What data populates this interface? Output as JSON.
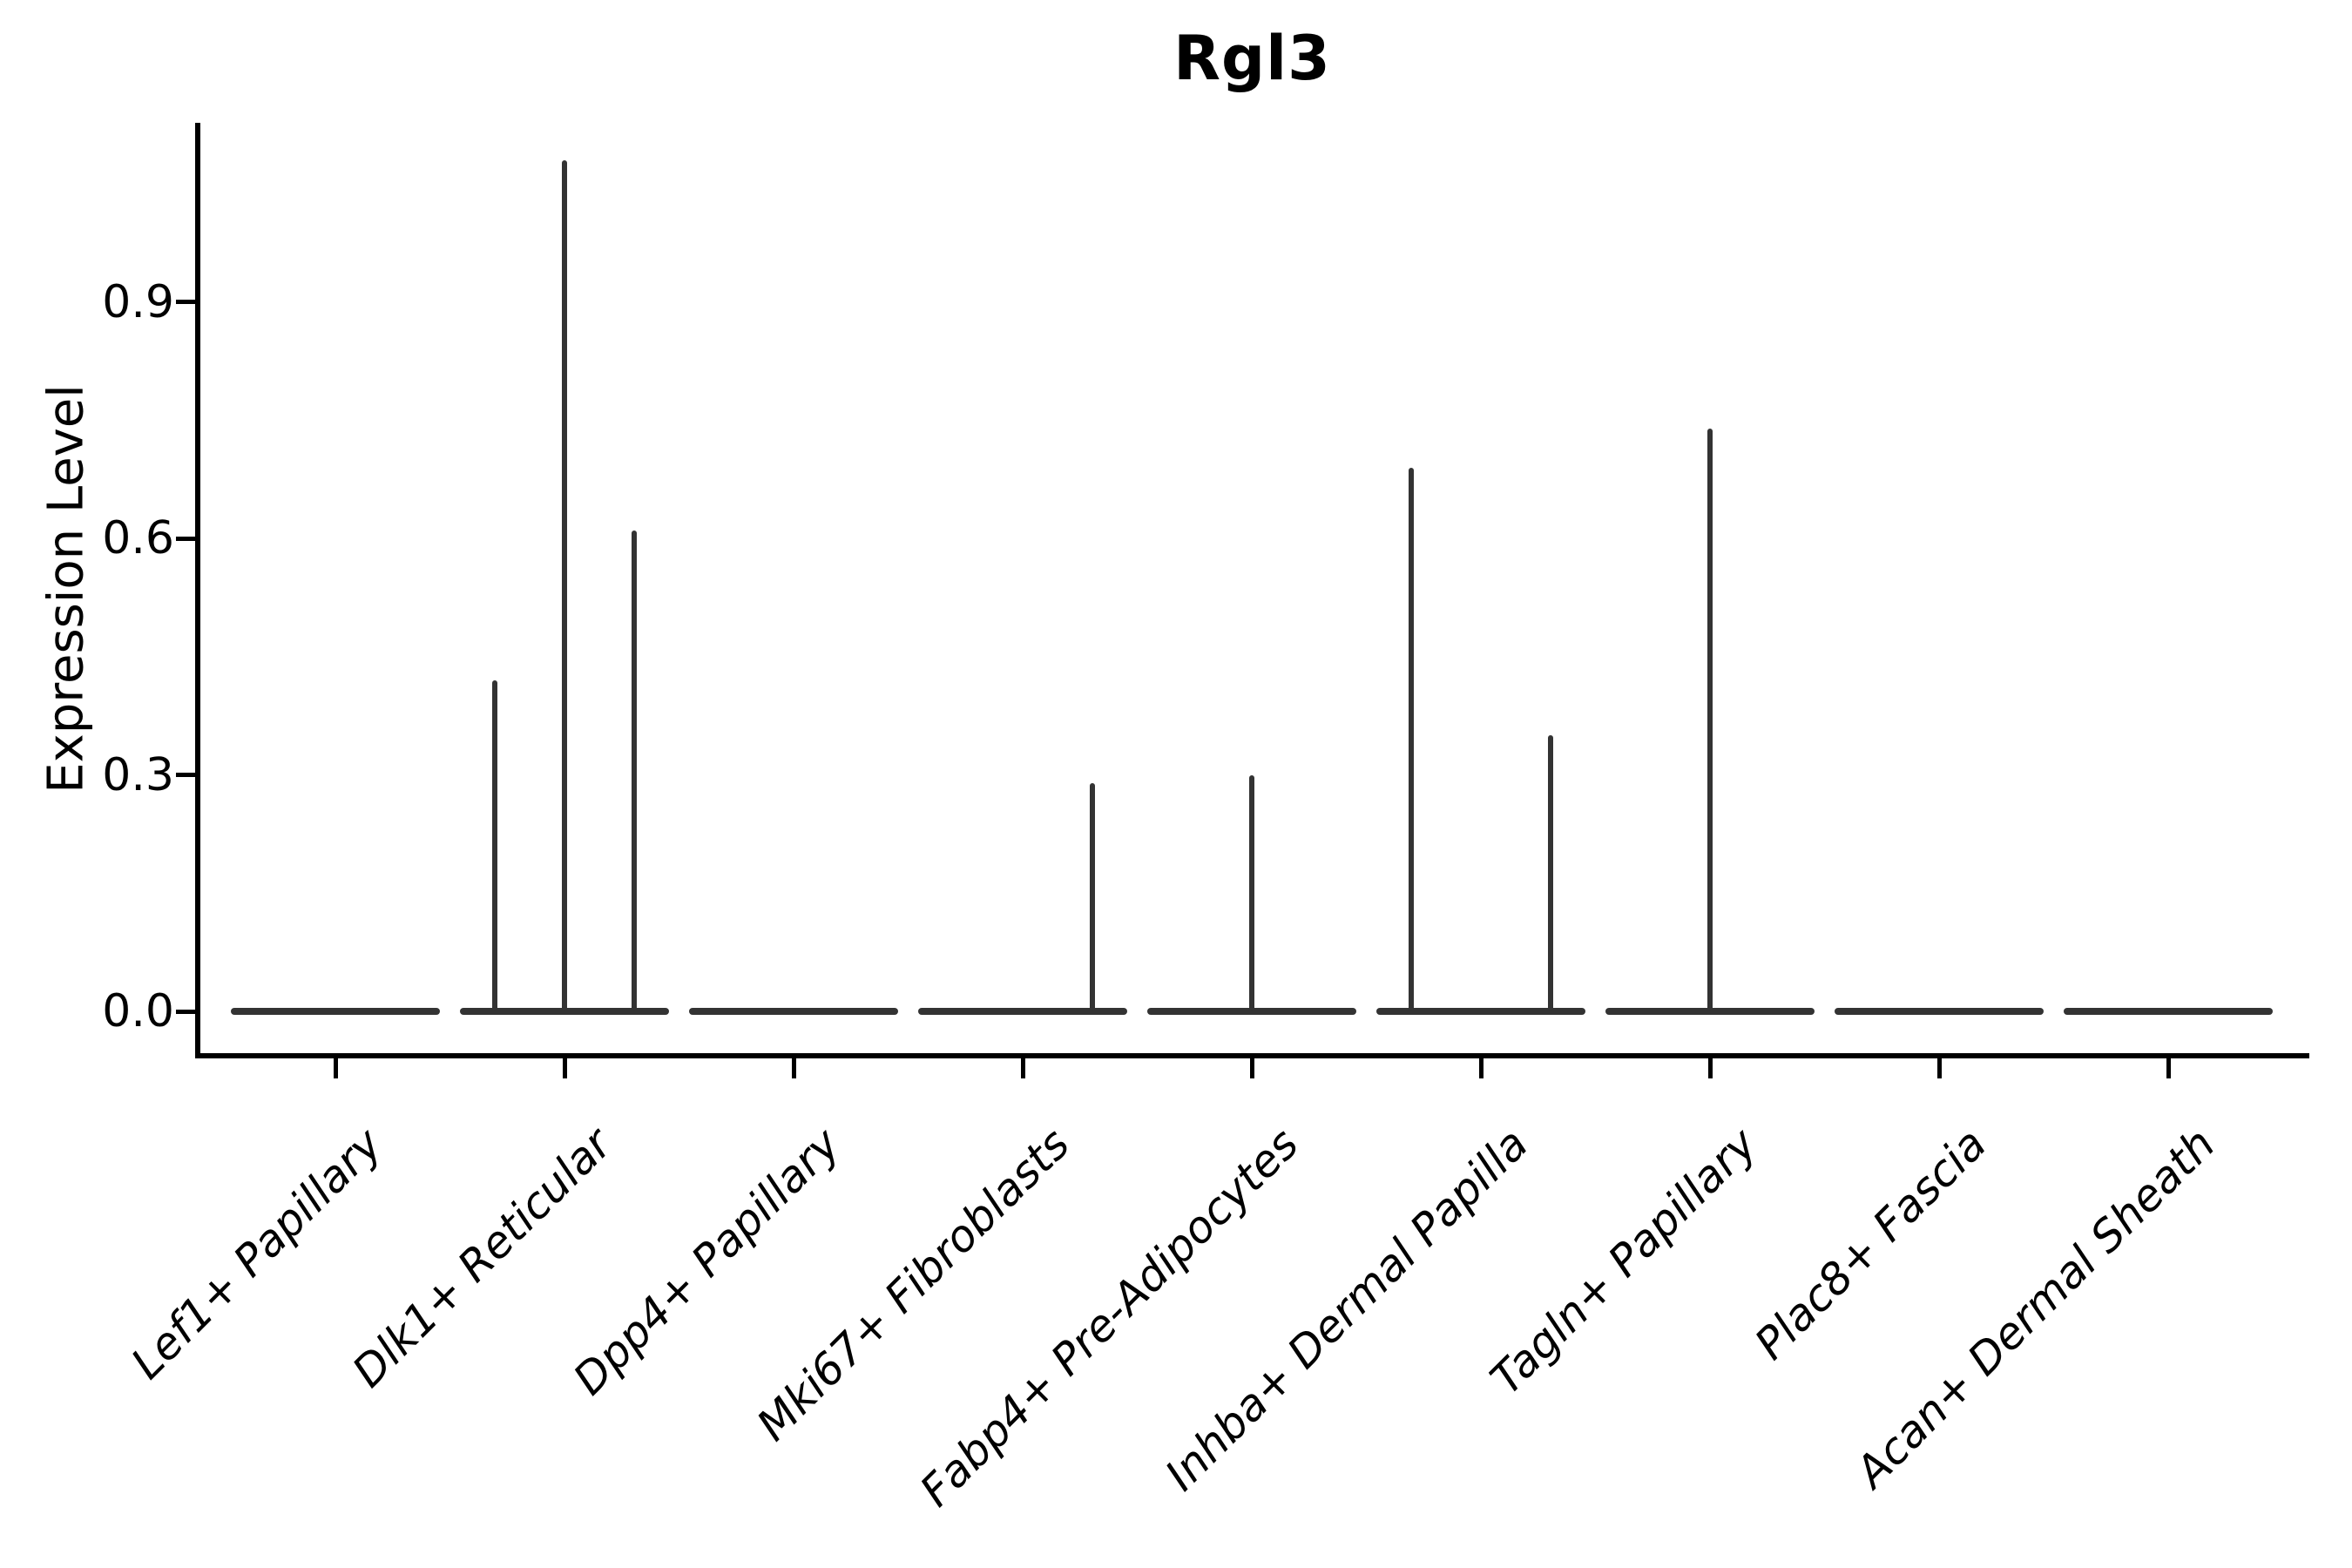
{
  "title": "Rgl3",
  "y_axis": {
    "label": "Expression Level",
    "tick_labels": [
      "0.0",
      "0.3",
      "0.6",
      "0.9"
    ]
  },
  "chart_data": {
    "type": "violin",
    "title": "Rgl3",
    "xlabel": "",
    "ylabel": "Expression Level",
    "ylim": [
      0,
      1.13
    ],
    "yticks": [
      0.0,
      0.3,
      0.6,
      0.9
    ],
    "grid": false,
    "legend": "none",
    "categories": [
      "Lef1+ Papillary",
      "Dlk1+ Reticular",
      "Dpp4+ Papillary",
      "Mki67+ Fibroblasts",
      "Fabp4+ Pre-Adipocytes",
      "Inhba+ Dermal Papilla",
      "Tagln+ Papillary",
      "Plac8+ Fascia",
      "Acan+ Dermal Sheath"
    ],
    "description": "Violin plot of Rgl3 expression per fibroblast cluster; all distributions are concentrated at 0 (flat baselines) with thin spikes marking rare expressing cells.",
    "violins": [
      {
        "category": "Lef1+ Papillary",
        "baseline_value": 0,
        "spikes": []
      },
      {
        "category": "Dlk1+ Reticular",
        "baseline_value": 0,
        "spikes": [
          {
            "offset": -80,
            "value": 0.42
          },
          {
            "offset": 0,
            "value": 1.08
          },
          {
            "offset": 80,
            "value": 0.61
          }
        ]
      },
      {
        "category": "Dpp4+ Papillary",
        "baseline_value": 0,
        "spikes": []
      },
      {
        "category": "Mki67+ Fibroblasts",
        "baseline_value": 0,
        "spikes": [
          {
            "offset": 80,
            "value": 0.29
          }
        ]
      },
      {
        "category": "Fabp4+ Pre-Adipocytes",
        "baseline_value": 0,
        "spikes": [
          {
            "offset": 0,
            "value": 0.3
          }
        ]
      },
      {
        "category": "Inhba+ Dermal Papilla",
        "baseline_value": 0,
        "spikes": [
          {
            "offset": -80,
            "value": 0.69
          },
          {
            "offset": 80,
            "value": 0.35
          }
        ]
      },
      {
        "category": "Tagln+ Papillary",
        "baseline_value": 0,
        "spikes": [
          {
            "offset": 0,
            "value": 0.74
          }
        ]
      },
      {
        "category": "Plac8+ Fascia",
        "baseline_value": 0,
        "spikes": []
      },
      {
        "category": "Acan+ Dermal Sheath",
        "baseline_value": 0,
        "spikes": []
      }
    ],
    "colors": {
      "violin_stroke": "#333333",
      "axis": "#000000",
      "background": "#ffffff"
    }
  }
}
